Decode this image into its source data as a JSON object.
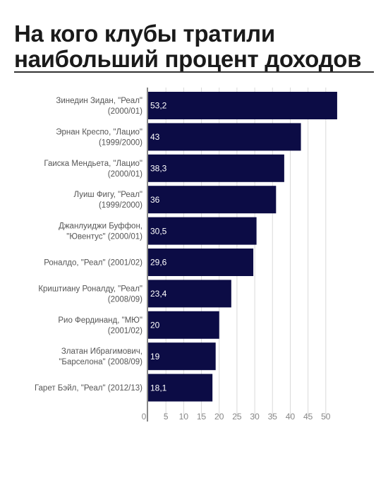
{
  "title_line1": "На кого клубы тратили",
  "title_line2": "наибольший процент доходов",
  "bar_color": "#0c0c45",
  "grid_color": "#d9d9d9",
  "chart_data": {
    "type": "bar",
    "orientation": "horizontal",
    "title": "На кого клубы тратили наибольший процент доходов",
    "categories": [
      [
        "Зинедин Зидан, \"Реал\"",
        "(2000/01)"
      ],
      [
        "Эрнан Креспо, \"Лацио\"",
        "(1999/2000)"
      ],
      [
        "Гаиска Мендьета, \"Лацио\"",
        "(2000/01)"
      ],
      [
        "Луиш Фигу, \"Реал\"",
        "(1999/2000)"
      ],
      [
        "Джанлуиджи Буффон,",
        "\"Ювентус\" (2000/01)"
      ],
      [
        "Роналдо, \"Реал\" (2001/02)"
      ],
      [
        "Криштиану Роналду, \"Реал\"",
        "(2008/09)"
      ],
      [
        "Рио Фердинанд, \"МЮ\"",
        "(2001/02)"
      ],
      [
        "Златан Ибрагимович,",
        "\"Барселона\" (2008/09)"
      ],
      [
        "Гарет Бэйл, \"Реал\" (2012/13)"
      ]
    ],
    "values": [
      53.2,
      43,
      38.3,
      36,
      30.5,
      29.6,
      23.4,
      20,
      19,
      18.1
    ],
    "value_labels": [
      "53,2",
      "43",
      "38,3",
      "36",
      "30,5",
      "29,6",
      "23,4",
      "20",
      "19",
      "18,1"
    ],
    "xlim": [
      0,
      55
    ],
    "ticks": [
      0,
      5,
      10,
      15,
      20,
      25,
      30,
      35,
      40,
      45,
      50
    ],
    "tick_labels": [
      "0",
      "5",
      "10",
      "15",
      "20",
      "25",
      "30",
      "35",
      "40",
      "45",
      "50"
    ],
    "grid": true,
    "xlabel": "",
    "ylabel": ""
  }
}
